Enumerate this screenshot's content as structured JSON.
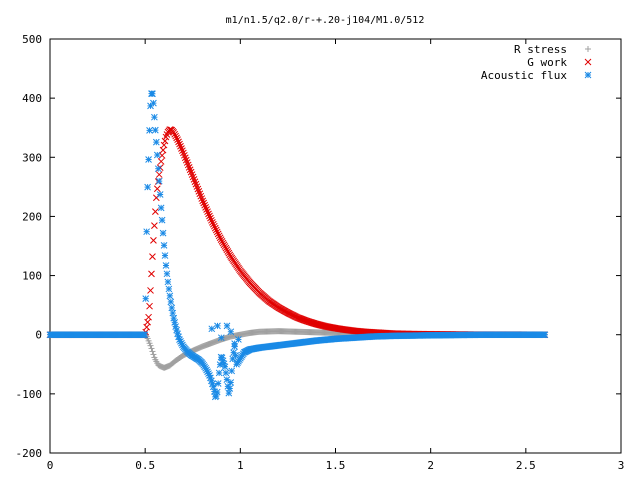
{
  "chart_data": {
    "type": "scatter",
    "title": "m1/n1.5/q2.0/r-+.20-j104/M1.0/512",
    "xlabel": "",
    "ylabel": "",
    "xlim": [
      0,
      3
    ],
    "ylim": [
      -200,
      500
    ],
    "x_ticks": [
      "0",
      "0.5",
      "1",
      "1.5",
      "2",
      "2.5",
      "3"
    ],
    "y_ticks": [
      "-200",
      "-100",
      "0",
      "100",
      "200",
      "300",
      "400",
      "500"
    ],
    "legend_position": "top-right",
    "grid": false,
    "series": [
      {
        "name": "R stress",
        "marker": "plus",
        "color": "#a0a0a0",
        "points": [
          [
            0.0,
            0
          ],
          [
            0.2,
            0
          ],
          [
            0.4,
            0
          ],
          [
            0.5,
            0
          ],
          [
            0.51,
            -4
          ],
          [
            0.53,
            -20
          ],
          [
            0.55,
            -40
          ],
          [
            0.57,
            -52
          ],
          [
            0.6,
            -56
          ],
          [
            0.63,
            -52
          ],
          [
            0.66,
            -44
          ],
          [
            0.7,
            -35
          ],
          [
            0.75,
            -27
          ],
          [
            0.8,
            -20
          ],
          [
            0.85,
            -14
          ],
          [
            0.9,
            -8
          ],
          [
            0.95,
            -3
          ],
          [
            1.0,
            0
          ],
          [
            1.05,
            3
          ],
          [
            1.1,
            5
          ],
          [
            1.2,
            6
          ],
          [
            1.3,
            5
          ],
          [
            1.4,
            4
          ],
          [
            1.5,
            3
          ],
          [
            1.6,
            2
          ],
          [
            1.8,
            1
          ],
          [
            2.0,
            0.5
          ],
          [
            2.3,
            0.2
          ],
          [
            2.6,
            0
          ]
        ]
      },
      {
        "name": "G work",
        "marker": "cross",
        "color": "#e00000",
        "points": [
          [
            0.0,
            0
          ],
          [
            0.2,
            0
          ],
          [
            0.4,
            0
          ],
          [
            0.5,
            0
          ],
          [
            0.52,
            33
          ],
          [
            0.525,
            58
          ],
          [
            0.53,
            85
          ],
          [
            0.535,
            113
          ],
          [
            0.54,
            142
          ],
          [
            0.545,
            168
          ],
          [
            0.55,
            192
          ],
          [
            0.555,
            215
          ],
          [
            0.56,
            238
          ],
          [
            0.57,
            262
          ],
          [
            0.58,
            285
          ],
          [
            0.59,
            305
          ],
          [
            0.6,
            322
          ],
          [
            0.61,
            335
          ],
          [
            0.62,
            343
          ],
          [
            0.63,
            347
          ],
          [
            0.64,
            346
          ],
          [
            0.65,
            342
          ],
          [
            0.67,
            330
          ],
          [
            0.7,
            308
          ],
          [
            0.75,
            268
          ],
          [
            0.8,
            228
          ],
          [
            0.85,
            192
          ],
          [
            0.9,
            160
          ],
          [
            0.95,
            132
          ],
          [
            1.0,
            108
          ],
          [
            1.05,
            88
          ],
          [
            1.1,
            71
          ],
          [
            1.15,
            57
          ],
          [
            1.2,
            46
          ],
          [
            1.25,
            37
          ],
          [
            1.3,
            29
          ],
          [
            1.35,
            23
          ],
          [
            1.4,
            18
          ],
          [
            1.45,
            14
          ],
          [
            1.5,
            11
          ],
          [
            1.55,
            8.5
          ],
          [
            1.6,
            6.5
          ],
          [
            1.65,
            5
          ],
          [
            1.7,
            4
          ],
          [
            1.75,
            3
          ],
          [
            1.8,
            2
          ],
          [
            1.9,
            1.2
          ],
          [
            2.0,
            0.8
          ],
          [
            2.2,
            0.3
          ],
          [
            2.6,
            0
          ]
        ]
      },
      {
        "name": "Acoustic flux",
        "marker": "star",
        "color": "#1a8ae6",
        "points": [
          [
            0.0,
            0
          ],
          [
            0.25,
            0
          ],
          [
            0.5,
            0
          ],
          [
            0.51,
            223
          ],
          [
            0.52,
            315
          ],
          [
            0.525,
            365
          ],
          [
            0.53,
            400
          ],
          [
            0.535,
            412
          ],
          [
            0.54,
            405
          ],
          [
            0.545,
            385
          ],
          [
            0.55,
            360
          ],
          [
            0.555,
            340
          ],
          [
            0.56,
            320
          ],
          [
            0.565,
            298
          ],
          [
            0.57,
            275
          ],
          [
            0.575,
            255
          ],
          [
            0.58,
            232
          ],
          [
            0.585,
            210
          ],
          [
            0.59,
            190
          ],
          [
            0.595,
            168
          ],
          [
            0.6,
            148
          ],
          [
            0.61,
            115
          ],
          [
            0.62,
            88
          ],
          [
            0.63,
            65
          ],
          [
            0.64,
            45
          ],
          [
            0.65,
            28
          ],
          [
            0.66,
            14
          ],
          [
            0.67,
            2
          ],
          [
            0.68,
            -8
          ],
          [
            0.7,
            -20
          ],
          [
            0.72,
            -28
          ],
          [
            0.74,
            -34
          ],
          [
            0.76,
            -38
          ],
          [
            0.78,
            -42
          ],
          [
            0.8,
            -48
          ],
          [
            0.82,
            -58
          ],
          [
            0.84,
            -70
          ],
          [
            0.86,
            -90
          ],
          [
            0.87,
            -108
          ],
          [
            0.88,
            -95
          ],
          [
            0.89,
            -60
          ],
          [
            0.9,
            -35
          ],
          [
            0.92,
            -55
          ],
          [
            0.94,
            -100
          ],
          [
            0.95,
            -80
          ],
          [
            0.96,
            -40
          ],
          [
            0.97,
            -20
          ],
          [
            0.98,
            -50
          ],
          [
            1.0,
            -40
          ],
          [
            1.02,
            -30
          ],
          [
            1.05,
            -25
          ],
          [
            1.1,
            -22
          ],
          [
            1.15,
            -20
          ],
          [
            1.2,
            -18
          ],
          [
            1.3,
            -14
          ],
          [
            1.4,
            -10
          ],
          [
            1.5,
            -7
          ],
          [
            1.6,
            -5
          ],
          [
            1.7,
            -3
          ],
          [
            1.8,
            -2
          ],
          [
            2.0,
            -1
          ],
          [
            2.3,
            0
          ],
          [
            2.6,
            0
          ]
        ],
        "scatter_points": [
          [
            0.85,
            10
          ],
          [
            0.88,
            15
          ],
          [
            0.9,
            -5
          ],
          [
            0.93,
            15
          ],
          [
            0.95,
            5
          ],
          [
            0.97,
            -15
          ],
          [
            0.99,
            -8
          ]
        ]
      }
    ]
  }
}
